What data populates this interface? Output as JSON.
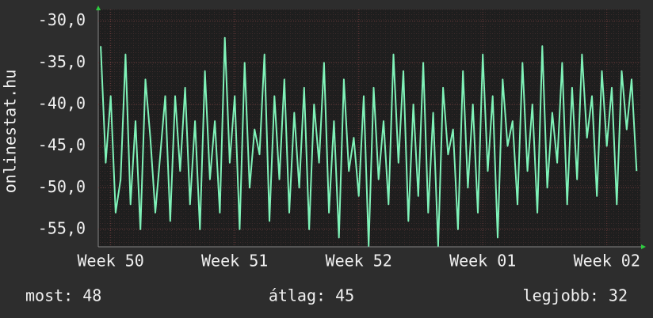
{
  "chart_data": {
    "type": "line",
    "ylabel": "onlinestat.hu",
    "annotations": [
      "most: 48",
      "átlag: 45",
      "legjobb: 32"
    ],
    "xlim": [
      -0.1,
      4.27
    ],
    "xticks": [
      {
        "value": 0,
        "label": "Week 50"
      },
      {
        "value": 1,
        "label": "Week 51"
      },
      {
        "value": 2,
        "label": "Week 52"
      },
      {
        "value": 3,
        "label": "Week 01"
      },
      {
        "value": 4,
        "label": "Week 02"
      }
    ],
    "ylim": [
      -57.1,
      -28.6
    ],
    "yticks": [
      {
        "value": -30,
        "label": "-30,0"
      },
      {
        "value": -35,
        "label": "-35,0"
      },
      {
        "value": -40,
        "label": "-40,0"
      },
      {
        "value": -45,
        "label": "-45,0"
      },
      {
        "value": -50,
        "label": "-50,0"
      },
      {
        "value": -55,
        "label": "-55,0"
      }
    ],
    "grid": true,
    "x": [
      -0.08,
      -0.04,
      0,
      0.04,
      0.08,
      0.12,
      0.16,
      0.2,
      0.24,
      0.28,
      0.32,
      0.36,
      0.4,
      0.44,
      0.48,
      0.52,
      0.56,
      0.6,
      0.64,
      0.68,
      0.72,
      0.76,
      0.8,
      0.84,
      0.88,
      0.92,
      0.96,
      1,
      1.04,
      1.08,
      1.12,
      1.16,
      1.2,
      1.24,
      1.28,
      1.32,
      1.36,
      1.4,
      1.44,
      1.48,
      1.52,
      1.56,
      1.6,
      1.64,
      1.68,
      1.72,
      1.76,
      1.8,
      1.84,
      1.88,
      1.92,
      1.96,
      2,
      2.04,
      2.08,
      2.12,
      2.16,
      2.2,
      2.24,
      2.28,
      2.32,
      2.36,
      2.4,
      2.44,
      2.48,
      2.52,
      2.56,
      2.6,
      2.64,
      2.68,
      2.72,
      2.76,
      2.8,
      2.84,
      2.88,
      2.92,
      2.96,
      3,
      3.04,
      3.08,
      3.12,
      3.16,
      3.2,
      3.24,
      3.28,
      3.32,
      3.36,
      3.4,
      3.44,
      3.48,
      3.52,
      3.56,
      3.6,
      3.64,
      3.68,
      3.72,
      3.76,
      3.8,
      3.84,
      3.88,
      3.92,
      3.96,
      4,
      4.04,
      4.08,
      4.12,
      4.16,
      4.2,
      4.24
    ],
    "series": [
      {
        "color": "#7ff2b8",
        "values": [
          -33,
          -47,
          -39,
          -53,
          -49,
          -34,
          -52,
          -42,
          -55,
          -37,
          -44,
          -53,
          -46,
          -39,
          -54,
          -39,
          -48,
          -38,
          -52,
          -42,
          -55,
          -36,
          -49,
          -42,
          -53,
          -32,
          -47,
          -39,
          -55,
          -35,
          -50,
          -43,
          -46,
          -34,
          -54,
          -39,
          -49,
          -37,
          -53,
          -41,
          -50,
          -38,
          -55,
          -40,
          -47,
          -35,
          -53,
          -42,
          -56,
          -37,
          -48,
          -44,
          -51,
          -39,
          -57,
          -38,
          -49,
          -42,
          -52,
          -34,
          -47,
          -36,
          -54,
          -40,
          -51,
          -35,
          -53,
          -41,
          -57,
          -38,
          -46,
          -43,
          -55,
          -36,
          -50,
          -40,
          -53,
          -34,
          -48,
          -39,
          -56,
          -37,
          -45,
          -42,
          -52,
          -35,
          -48,
          -40,
          -53,
          -33,
          -50,
          -41,
          -47,
          -35,
          -52,
          -38,
          -49,
          -34,
          -44,
          -39,
          -51,
          -36,
          -45,
          -38,
          -52,
          -36,
          -43,
          -37,
          -48
        ]
      }
    ]
  }
}
